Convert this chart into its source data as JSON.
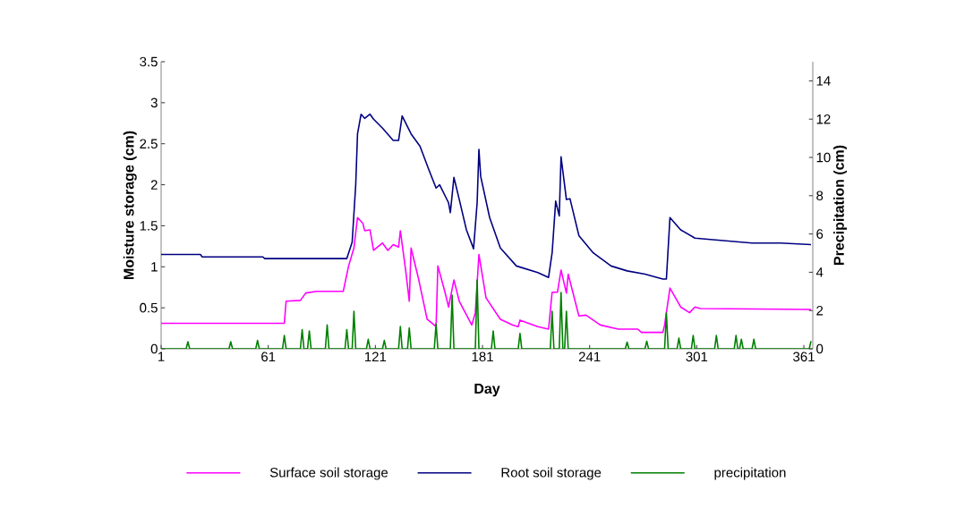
{
  "chart_data": {
    "type": "line",
    "xlabel": "Day",
    "ylabel": "Moisture storage (cm)",
    "y2label": "Precipitation (cm)",
    "xlim": [
      1,
      366
    ],
    "xticks": [
      1,
      61,
      121,
      181,
      241,
      301,
      361
    ],
    "ylim": [
      0,
      3.5
    ],
    "yticks": [
      0,
      0.5,
      1,
      1.5,
      2,
      2.5,
      3,
      3.5
    ],
    "y2lim": [
      0,
      15
    ],
    "y2ticks": [
      0,
      2,
      4,
      6,
      8,
      10,
      12,
      14
    ],
    "legend": "bottom",
    "series": [
      {
        "name": "Surface soil storage",
        "color": "#ff00ff",
        "x": [
          1,
          70,
          71,
          79,
          82,
          88,
          103,
          106,
          109,
          111,
          114,
          115,
          118,
          120,
          125,
          128,
          131,
          134,
          135,
          138,
          140,
          141,
          145,
          150,
          155,
          156,
          160,
          162,
          165,
          168,
          175,
          177,
          179,
          183,
          191,
          198,
          201,
          202,
          212,
          218,
          220,
          223,
          225,
          228,
          229,
          235,
          239,
          247,
          257,
          268,
          270,
          282,
          283,
          286,
          292,
          297,
          300,
          303,
          365
        ],
        "values": [
          0.31,
          0.31,
          0.58,
          0.59,
          0.68,
          0.7,
          0.7,
          1.01,
          1.23,
          1.6,
          1.53,
          1.44,
          1.45,
          1.2,
          1.29,
          1.2,
          1.27,
          1.24,
          1.44,
          0.95,
          0.58,
          1.23,
          0.87,
          0.36,
          0.27,
          1.01,
          0.69,
          0.51,
          0.84,
          0.58,
          0.29,
          0.44,
          1.15,
          0.62,
          0.36,
          0.29,
          0.27,
          0.35,
          0.27,
          0.24,
          0.69,
          0.69,
          0.96,
          0.68,
          0.91,
          0.4,
          0.41,
          0.29,
          0.24,
          0.24,
          0.2,
          0.2,
          0.29,
          0.74,
          0.51,
          0.44,
          0.51,
          0.49,
          0.48
        ]
      },
      {
        "name": "Root soil storage",
        "color": "#000080",
        "x": [
          1,
          23,
          24,
          58,
          59,
          105,
          108,
          110,
          111,
          113,
          115,
          118,
          120,
          125,
          131,
          134,
          136,
          141,
          146,
          151,
          155,
          157,
          162,
          163,
          165,
          168,
          172,
          176,
          178,
          179,
          180,
          185,
          191,
          200,
          212,
          218,
          220,
          222,
          224,
          225,
          228,
          230,
          235,
          243,
          253,
          262,
          272,
          282,
          284,
          286,
          292,
          300,
          310,
          332,
          348,
          365
        ],
        "values": [
          1.15,
          1.15,
          1.12,
          1.12,
          1.1,
          1.1,
          1.3,
          2.0,
          2.62,
          2.86,
          2.81,
          2.86,
          2.8,
          2.69,
          2.54,
          2.54,
          2.84,
          2.62,
          2.47,
          2.18,
          1.96,
          2.0,
          1.78,
          1.66,
          2.09,
          1.82,
          1.45,
          1.22,
          1.78,
          2.43,
          2.1,
          1.6,
          1.23,
          1.01,
          0.93,
          0.87,
          1.17,
          1.8,
          1.62,
          2.34,
          1.82,
          1.83,
          1.38,
          1.17,
          1.01,
          0.95,
          0.91,
          0.85,
          0.85,
          1.6,
          1.45,
          1.35,
          1.33,
          1.29,
          1.29,
          1.27
        ]
      },
      {
        "name": "precipitation",
        "color": "#008000",
        "axis": "y2",
        "x": [
          1,
          15,
          16,
          17,
          39,
          40,
          41,
          54,
          55,
          56,
          69,
          70,
          71,
          79,
          80,
          81,
          83,
          84,
          85,
          93,
          94,
          95,
          104,
          105,
          106,
          108,
          109,
          110,
          116,
          117,
          118,
          125,
          126,
          127,
          134,
          135,
          136,
          139,
          140,
          141,
          154,
          155,
          156,
          163,
          164,
          165,
          177,
          178,
          179,
          186,
          187,
          188,
          201,
          202,
          203,
          219,
          220,
          221,
          224,
          225,
          226,
          227,
          228,
          229,
          261,
          262,
          263,
          272,
          273,
          274,
          283,
          284,
          285,
          290,
          291,
          292,
          298,
          299,
          300,
          311,
          312,
          313,
          322,
          323,
          324,
          325,
          326,
          327,
          332,
          333,
          334,
          364,
          365
        ],
        "values": [
          0,
          0,
          0.37,
          0,
          0,
          0.37,
          0,
          0,
          0.44,
          0,
          0,
          0.7,
          0,
          0,
          1.0,
          0,
          0,
          0.93,
          0,
          0,
          1.25,
          0,
          0,
          1.0,
          0,
          0,
          1.96,
          0,
          0,
          0.5,
          0,
          0,
          0.44,
          0,
          0,
          1.17,
          0,
          0,
          1.09,
          0,
          0,
          1.3,
          0,
          0,
          2.8,
          0,
          0,
          3.6,
          0,
          0,
          0.93,
          0,
          0,
          0.8,
          0,
          0,
          1.96,
          0,
          0,
          2.94,
          0,
          0,
          1.96,
          0,
          0,
          0.35,
          0,
          0,
          0.4,
          0,
          0,
          1.87,
          0,
          0,
          0.56,
          0,
          0,
          0.7,
          0,
          0,
          0.7,
          0,
          0,
          0.7,
          0,
          0,
          0.5,
          0,
          0,
          0.5,
          0,
          0,
          0.4
        ]
      }
    ]
  }
}
